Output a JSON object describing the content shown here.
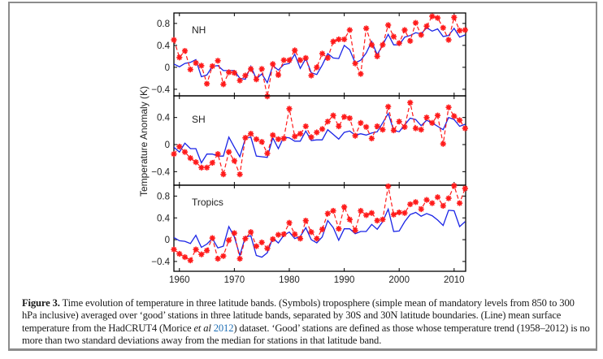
{
  "chart_data": {
    "type": "line",
    "title": "",
    "ylabel": "Temperature Anomaly (K)",
    "xlabel": "",
    "x": [
      1959,
      1960,
      1961,
      1962,
      1963,
      1964,
      1965,
      1966,
      1967,
      1968,
      1969,
      1970,
      1971,
      1972,
      1973,
      1974,
      1975,
      1976,
      1977,
      1978,
      1979,
      1980,
      1981,
      1982,
      1983,
      1984,
      1985,
      1986,
      1987,
      1988,
      1989,
      1990,
      1991,
      1992,
      1993,
      1994,
      1995,
      1996,
      1997,
      1998,
      1999,
      2000,
      2001,
      2002,
      2003,
      2004,
      2005,
      2006,
      2007,
      2008,
      2009,
      2010,
      2011,
      2012
    ],
    "xlim": [
      1959,
      2012.1
    ],
    "xticks": [
      1960,
      1970,
      1980,
      1990,
      2000,
      2010
    ],
    "xtick_labels": [
      "1960",
      "1970",
      "1980",
      "1990",
      "2000",
      "2010"
    ],
    "panels": [
      {
        "label": "NH",
        "ylim": [
          -0.52,
          0.99
        ],
        "yticks": [
          -0.4,
          0,
          0.4,
          0.8
        ],
        "ytick_labels": [
          "−0.4",
          "0",
          "0.4",
          "0.8"
        ],
        "series": [
          {
            "name": "Troposphere (symbols)",
            "style": "red dashed with asterisks",
            "values": [
              0.5,
              0.18,
              0.3,
              -0.04,
              0.08,
              0.03,
              -0.3,
              0.02,
              0.12,
              -0.31,
              -0.09,
              -0.1,
              -0.24,
              -0.15,
              -0.03,
              -0.22,
              -0.03,
              -0.53,
              0.06,
              -0.14,
              0.13,
              0.13,
              0.31,
              0.13,
              0.17,
              -0.15,
              0.0,
              0.25,
              0.17,
              0.47,
              0.51,
              0.51,
              0.68,
              0.07,
              -0.12,
              0.71,
              0.41,
              0.2,
              0.41,
              0.77,
              0.56,
              0.44,
              0.68,
              0.48,
              0.81,
              0.59,
              0.75,
              0.93,
              0.9,
              0.72,
              0.5,
              0.91,
              0.67,
              0.68
            ]
          },
          {
            "name": "HadCRUT4 surface (line)",
            "style": "blue solid",
            "values": [
              0.06,
              0.01,
              0.07,
              0.09,
              0.14,
              -0.17,
              -0.14,
              0.02,
              0.03,
              -0.06,
              -0.06,
              -0.06,
              -0.2,
              -0.22,
              0.02,
              -0.21,
              -0.12,
              -0.28,
              0.03,
              -0.05,
              0.05,
              0.07,
              0.24,
              -0.02,
              0.16,
              -0.1,
              -0.13,
              0.04,
              0.25,
              0.17,
              0.16,
              0.4,
              0.32,
              0.08,
              0.13,
              0.26,
              0.47,
              0.23,
              0.41,
              0.6,
              0.41,
              0.41,
              0.55,
              0.58,
              0.63,
              0.61,
              0.72,
              0.66,
              0.7,
              0.56,
              0.58,
              0.71,
              0.55,
              0.59
            ]
          }
        ]
      },
      {
        "label": "SH",
        "ylim": [
          -0.6,
          0.72
        ],
        "yticks": [
          -0.4,
          0,
          0.4
        ],
        "ytick_labels": [
          "−0.4",
          "0",
          "0.4"
        ],
        "series": [
          {
            "name": "Troposphere (symbols)",
            "style": "red dashed with asterisks",
            "values": [
              -0.14,
              -0.03,
              -0.11,
              -0.2,
              -0.26,
              -0.34,
              -0.34,
              -0.27,
              -0.14,
              -0.44,
              -0.11,
              -0.24,
              -0.44,
              0.1,
              0.16,
              0.08,
              0.04,
              -0.13,
              0.14,
              0.08,
              0.09,
              0.53,
              0.12,
              0.16,
              0.27,
              0.11,
              0.18,
              0.23,
              0.34,
              0.43,
              0.27,
              0.41,
              0.39,
              0.13,
              0.32,
              0.26,
              0.09,
              0.27,
              0.22,
              0.56,
              0.21,
              0.34,
              0.26,
              0.62,
              0.24,
              0.22,
              0.4,
              0.32,
              0.43,
              0.01,
              0.55,
              0.42,
              0.36,
              0.24
            ]
          },
          {
            "name": "HadCRUT4 surface (line)",
            "style": "blue solid",
            "values": [
              -0.04,
              -0.11,
              0.02,
              -0.06,
              -0.06,
              -0.27,
              -0.14,
              -0.14,
              -0.17,
              -0.17,
              0.11,
              -0.04,
              -0.18,
              0.09,
              0.11,
              -0.17,
              -0.18,
              -0.19,
              0.1,
              -0.06,
              0.11,
              0.1,
              0.05,
              0.05,
              0.2,
              0.06,
              0.07,
              0.07,
              0.22,
              0.15,
              0.08,
              0.18,
              0.2,
              0.14,
              0.16,
              0.14,
              0.17,
              0.19,
              0.32,
              0.46,
              0.21,
              0.19,
              0.29,
              0.39,
              0.37,
              0.28,
              0.36,
              0.32,
              0.27,
              0.22,
              0.4,
              0.37,
              0.27,
              0.3
            ]
          }
        ]
      },
      {
        "label": "Tropics",
        "ylim": [
          -0.58,
          1.0
        ],
        "yticks": [
          -0.4,
          0,
          0.4,
          0.8
        ],
        "ytick_labels": [
          "−0.4",
          "0",
          "0.4",
          "0.8"
        ],
        "series": [
          {
            "name": "Troposphere (symbols)",
            "style": "red dashed with asterisks",
            "values": [
              -0.18,
              -0.26,
              -0.32,
              -0.38,
              -0.18,
              -0.27,
              -0.2,
              0.03,
              -0.35,
              -0.3,
              -0.01,
              0.12,
              -0.35,
              0.02,
              0.14,
              -0.12,
              -0.05,
              -0.16,
              0.01,
              0.09,
              0.1,
              0.31,
              0.1,
              0.02,
              0.35,
              0.14,
              0.02,
              0.19,
              0.48,
              0.53,
              0.2,
              0.6,
              0.37,
              0.17,
              0.53,
              0.45,
              0.49,
              0.35,
              0.37,
              0.98,
              0.46,
              0.5,
              0.49,
              0.65,
              0.69,
              0.56,
              0.73,
              0.67,
              0.78,
              0.62,
              0.76,
              0.99,
              0.67,
              0.94
            ]
          },
          {
            "name": "HadCRUT4 surface (line)",
            "style": "blue solid",
            "values": [
              0.04,
              -0.02,
              -0.03,
              -0.07,
              0.08,
              -0.14,
              -0.08,
              0.02,
              -0.15,
              -0.12,
              0.24,
              0.05,
              -0.29,
              0.05,
              0.07,
              -0.29,
              -0.32,
              -0.24,
              0.03,
              -0.06,
              0.08,
              0.14,
              0.02,
              0.06,
              0.22,
              0.0,
              -0.06,
              0.05,
              0.35,
              0.22,
              -0.01,
              0.2,
              0.2,
              0.11,
              0.15,
              0.15,
              0.28,
              0.19,
              0.33,
              0.56,
              0.15,
              0.16,
              0.33,
              0.46,
              0.5,
              0.43,
              0.48,
              0.44,
              0.36,
              0.26,
              0.54,
              0.53,
              0.24,
              0.33
            ]
          }
        ]
      }
    ],
    "grid": false,
    "legend": "none"
  },
  "caption": {
    "figure_label": "Figure 3.",
    "part1": " Time evolution of temperature in three latitude bands. (Symbols) troposphere (simple mean of mandatory levels from 850 to 300 hPa inclusive) averaged over ‘good’ stations in three latitude bands, separated by 30S and 30N latitude boundaries. (Line) mean surface temperature from the HadCRUT4 (Morice ",
    "etal": "et al",
    "citation_year": "2012",
    "part2": ") dataset. ‘Good’ stations are defined as those whose temperature trend (1958–2012) is no more than two standard deviations away from the median for stations in that latitude band."
  },
  "colors": {
    "symbols": "#ff1a1a",
    "line": "#1a24e6",
    "axis": "#000000",
    "frame": "#8c8c8c",
    "citation": "#1f6fb5"
  }
}
